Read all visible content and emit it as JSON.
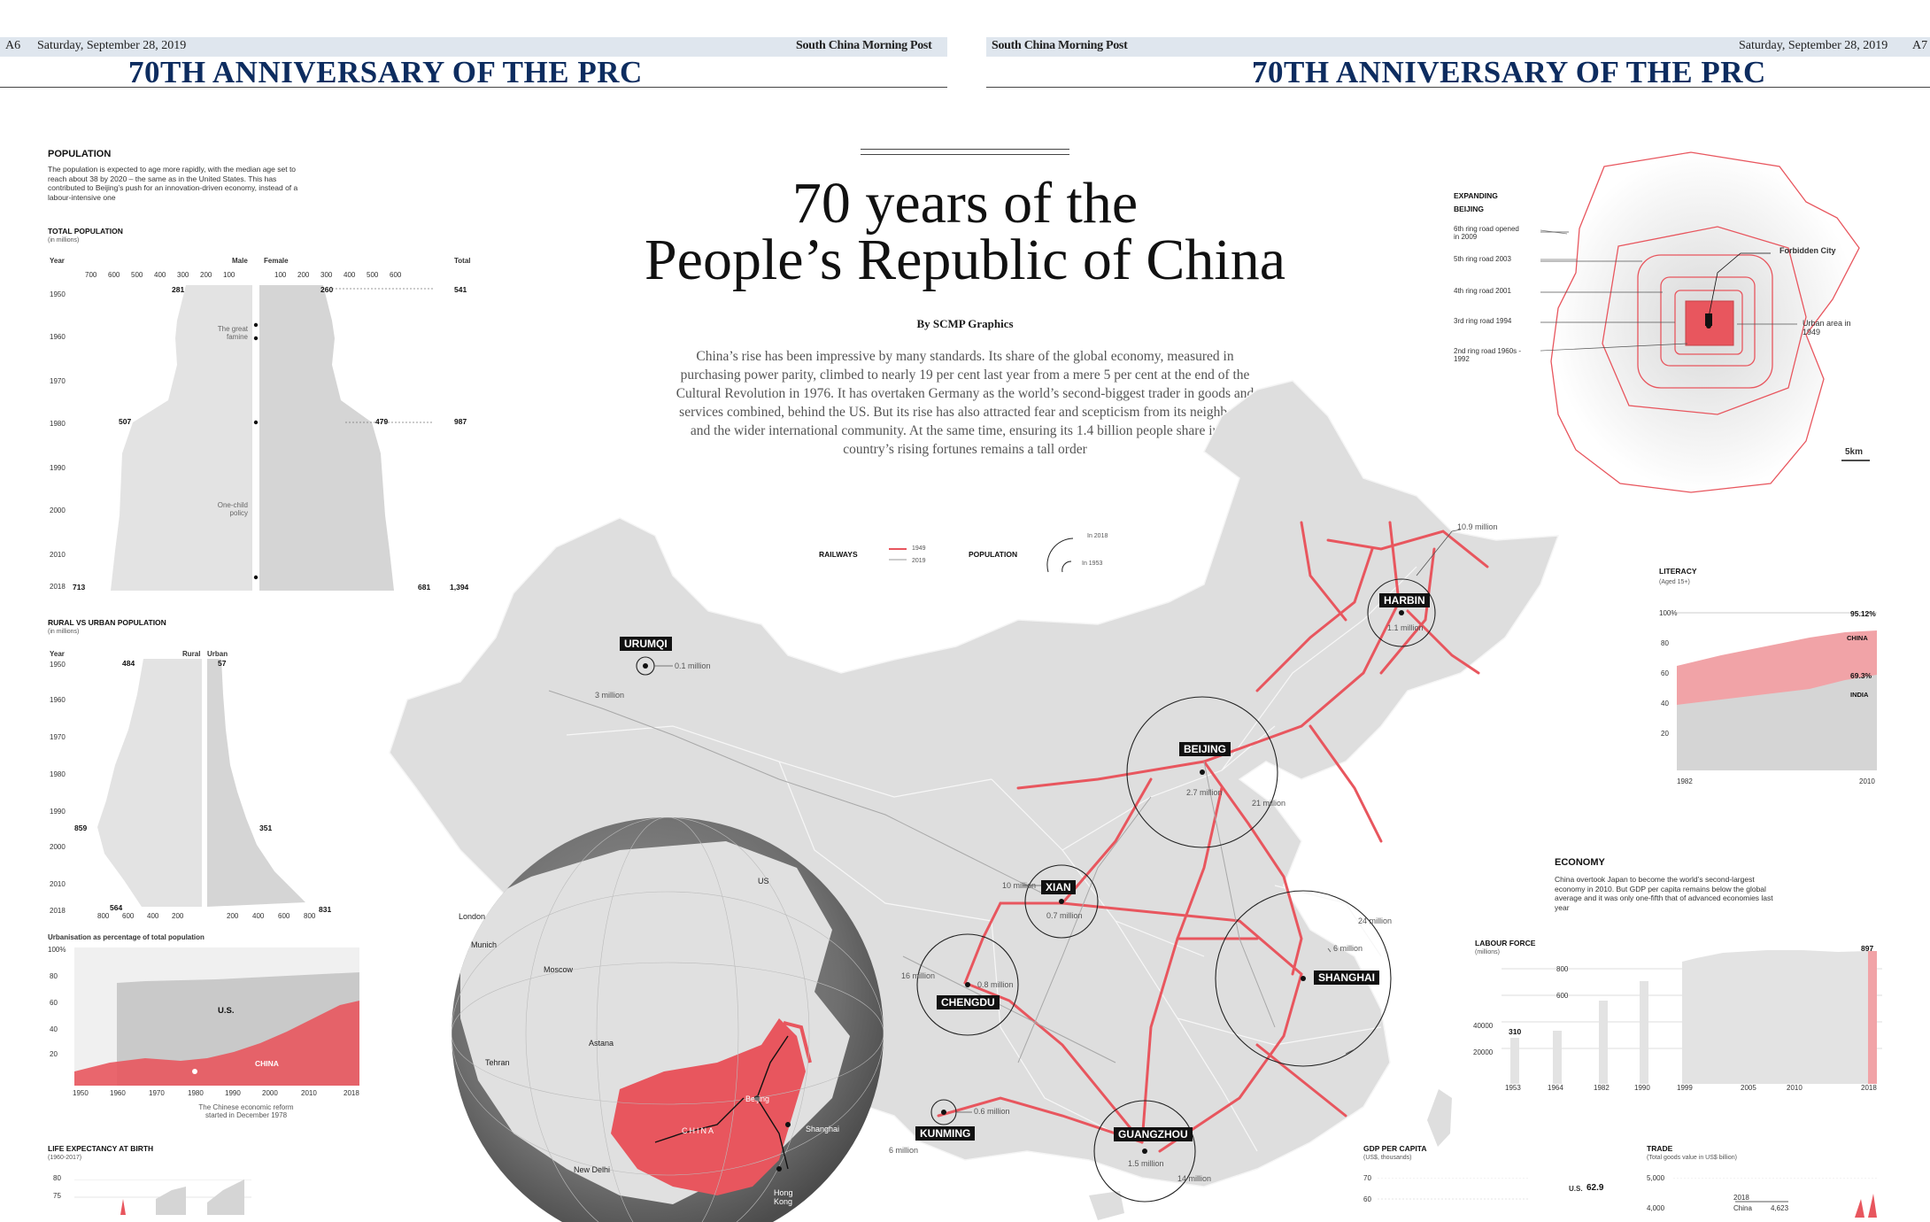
{
  "header": {
    "left_page": "A6",
    "left_date": "Saturday, September 28, 2019",
    "brand": "South China Morning Post",
    "right_date": "Saturday, September 28, 2019",
    "right_page": "A7",
    "section": "70TH ANNIVERSARY OF THE PRC"
  },
  "main": {
    "title_line1": "70 years of the",
    "title_line2": "People’s Republic of China",
    "byline": "By SCMP Graphics",
    "intro": "China’s rise has been impressive by many standards. Its share of the global economy, measured in purchasing power parity, climbed to nearly 19 per cent last year from a mere 5 per cent at the end of the Cultural Revolution in 1976. It has overtaken Germany as the world’s second-biggest trader in goods and services combined, behind the US. But its rise has also attracted fear and scepticism from its neighbours and the wider international community. At the same time, ensuring its 1.4 billion people share in the country’s rising fortunes remains a tall order"
  },
  "legend": {
    "railways": "RAILWAYS",
    "r1949": "1949",
    "r2019": "2019",
    "population": "POPULATION",
    "in2018": "In 2018",
    "in1953": "In 1953"
  },
  "population": {
    "title": "POPULATION",
    "desc": "The population is expected to age more rapidly, with the median age set to reach about 38 by 2020 – the same as in the United States. This has contributed to Beijing’s push for an innovation-driven economy, instead of a labour-intensive one",
    "total_title": "TOTAL POPULATION",
    "unit": "(in millions)",
    "col_year": "Year",
    "col_male": "Male",
    "col_female": "Female",
    "col_total": "Total",
    "male_ticks": [
      "700",
      "600",
      "500",
      "400",
      "300",
      "200",
      "100"
    ],
    "female_ticks": [
      "100",
      "200",
      "300",
      "400",
      "500",
      "600"
    ],
    "years": [
      "1950",
      "1960",
      "1970",
      "1980",
      "1990",
      "2000",
      "2010",
      "2018"
    ],
    "male_1950": "281",
    "female_1950": "260",
    "total_1950": "541",
    "male_1980": "507",
    "female_1980": "479",
    "total_1980": "987",
    "male_2018": "713",
    "female_2018": "681",
    "total_2018": "1,394",
    "famine": "The great famine",
    "one_child": "One-child policy"
  },
  "rural": {
    "title": "RURAL VS URBAN POPULATION",
    "unit": "(in millions)",
    "col_year": "Year",
    "col_rural": "Rural",
    "col_urban": "Urban",
    "years": [
      "1950",
      "1960",
      "1970",
      "1980",
      "1990",
      "2000",
      "2010",
      "2018"
    ],
    "rural_1950": "484",
    "urban_1950": "57",
    "rural_2000": "859",
    "urban_2000": "351",
    "rural_2018": "564",
    "urban_2018": "831",
    "rural_ticks": [
      "800",
      "600",
      "400",
      "200"
    ],
    "urban_ticks": [
      "200",
      "400",
      "600",
      "800"
    ]
  },
  "urbanisation": {
    "title": "Urbanisation as percentage of total population",
    "y_ticks": [
      "100%",
      "80",
      "60",
      "40",
      "20"
    ],
    "x_ticks": [
      "1950",
      "1960",
      "1970",
      "1980",
      "1990",
      "2000",
      "2010",
      "2018"
    ],
    "us": "U.S.",
    "china": "CHINA",
    "note": "The Chinese economic reform started in December 1978"
  },
  "life": {
    "title": "LIFE EXPECTANCY AT BIRTH",
    "unit": "(1960-2017)",
    "ticks": [
      "80",
      "75"
    ]
  },
  "map": {
    "cities": [
      {
        "name": "URUMQI",
        "pop2018": "3 million",
        "pop1953": "0.1 million"
      },
      {
        "name": "HARBIN",
        "pop2018": "10.9 million",
        "pop1953": "1.1 million"
      },
      {
        "name": "BEIJING",
        "pop2018": "21 million",
        "pop1953": "2.7 million"
      },
      {
        "name": "XIAN",
        "pop2018": "10 million",
        "pop1953": "0.7 million"
      },
      {
        "name": "CHENGDU",
        "pop2018": "16 million",
        "pop1953": "0.8 million"
      },
      {
        "name": "SHANGHAI",
        "pop2018": "24 million",
        "pop1953": "6 million"
      },
      {
        "name": "KUNMING",
        "pop2018": "6 million",
        "pop1953": "0.6 million"
      },
      {
        "name": "GUANGZHOU",
        "pop2018": "14 million",
        "pop1953": "1.5 million"
      }
    ],
    "globe_labels": {
      "us": "US",
      "london": "London",
      "munich": "Munich",
      "moscow": "Moscow",
      "astana": "Astana",
      "tehran": "Tehran",
      "new_delhi": "New Delhi",
      "china": "CHINA",
      "beijing": "Beijing",
      "shanghai": "Shanghai",
      "hong_kong": "Hong Kong"
    }
  },
  "expanding": {
    "title": "EXPANDING BEIJING",
    "r6": "6th ring road opened in 2009",
    "r5": "5th ring road 2003",
    "r4": "4th ring road 2001",
    "r3": "3rd ring road 1994",
    "r2": "2nd ring road 1960s - 1992",
    "forbidden": "Forbidden City",
    "urban1949": "Urban area in 1949",
    "scale": "5km"
  },
  "literacy": {
    "title": "LITERACY",
    "unit": "(Aged 15+)",
    "y_ticks": [
      "100%",
      "80",
      "60",
      "40",
      "20"
    ],
    "x_ticks": [
      "1982",
      "2010"
    ],
    "china_val": "95.12%",
    "china": "CHINA",
    "india_val": "69.3%",
    "india": "INDIA"
  },
  "economy": {
    "title": "ECONOMY",
    "desc": "China overtook Japan to become the world’s second-largest economy in 2010. But GDP per capita remains below the global average and it was only one-fifth that of advanced economies last year",
    "labour_title": "LABOUR FORCE",
    "labour_unit": "(millions)",
    "labour_first": "310",
    "labour_last": "897",
    "y_ticks": [
      "800",
      "600",
      "40000",
      "20000"
    ],
    "x_ticks": [
      "1953",
      "1964",
      "1982",
      "1990",
      "1999",
      "2005",
      "2010",
      "2018"
    ],
    "gdp_title": "GDP PER CAPITA",
    "gdp_unit": "(US$, thousands)",
    "gdp_ticks": [
      "70",
      "60"
    ],
    "trade_title": "TRADE",
    "trade_unit": "(Total goods value in US$ billion)",
    "trade_ticks": [
      "5,000",
      "4,000"
    ],
    "trade_us_label": "U.S.",
    "trade_us_val": "62.9",
    "trade_year": "2018",
    "trade_china": "China",
    "trade_china_val": "4,623"
  },
  "colors": {
    "accent_red": "#e8565e",
    "navy": "#0d2c5f",
    "land": "#dedede"
  }
}
